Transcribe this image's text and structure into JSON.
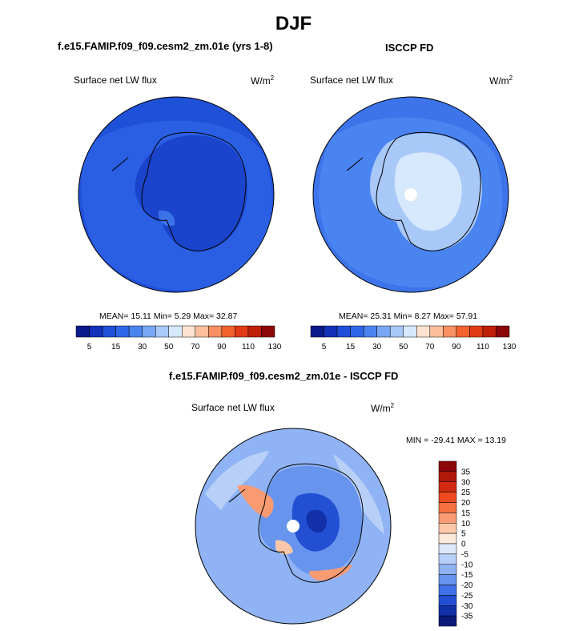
{
  "page": {
    "title": "DJF"
  },
  "panels": [
    {
      "case_title": "f.e15.FAMIP.f09_f09.cesm2_zm.01e (yrs 1-8)",
      "field_label": "Surface net LW flux",
      "unit_base": "W/m",
      "unit_exp": "2",
      "stats": {
        "mean_label": "MEAN=",
        "mean": "15.11",
        "min_label": "Min=",
        "min": "5.29",
        "max_label": "Max=",
        "max": "32.87"
      }
    },
    {
      "case_title": "ISCCP FD",
      "field_label": "Surface net LW flux",
      "unit_base": "W/m",
      "unit_exp": "2",
      "stats": {
        "mean_label": "MEAN=",
        "mean": "25.31",
        "min_label": "Min=",
        "min": "8.27",
        "max_label": "Max=",
        "max": "57.91"
      }
    }
  ],
  "diff_panel": {
    "case_title": "f.e15.FAMIP.f09_f09.cesm2_zm.01e - ISCCP FD",
    "field_label": "Surface net LW flux",
    "unit_base": "W/m",
    "unit_exp": "2",
    "minmax": {
      "min_label": "MIN =",
      "min": "-29.41",
      "max_label": "MAX =",
      "max": "13.19"
    }
  },
  "chart_data": [
    {
      "type": "heatmap",
      "projection": "south-polar-stereographic",
      "field": "Surface net LW flux",
      "units": "W/m2",
      "summary": {
        "mean": 15.11,
        "min": 5.29,
        "max": 32.87
      },
      "colorbar": {
        "orientation": "horizontal",
        "tick_labels": [
          "5",
          "15",
          "30",
          "50",
          "70",
          "90",
          "110",
          "130"
        ],
        "colors": [
          "#0a1a8a",
          "#1230b8",
          "#1f4fd6",
          "#2e66e8",
          "#4a84f0",
          "#78a8f5",
          "#a8c8f8",
          "#d6e8fb",
          "#fde3cf",
          "#fbbf9b",
          "#f89062",
          "#f2622e",
          "#e03b14",
          "#bf200a",
          "#8c0808"
        ]
      }
    },
    {
      "type": "heatmap",
      "projection": "south-polar-stereographic",
      "field": "Surface net LW flux",
      "units": "W/m2",
      "summary": {
        "mean": 25.31,
        "min": 8.27,
        "max": 57.91
      },
      "colorbar": {
        "orientation": "horizontal",
        "tick_labels": [
          "5",
          "15",
          "30",
          "50",
          "70",
          "90",
          "110",
          "130"
        ],
        "colors": [
          "#0a1a8a",
          "#1230b8",
          "#1f4fd6",
          "#2e66e8",
          "#4a84f0",
          "#78a8f5",
          "#a8c8f8",
          "#d6e8fb",
          "#fde3cf",
          "#fbbf9b",
          "#f89062",
          "#f2622e",
          "#e03b14",
          "#bf200a",
          "#8c0808"
        ]
      }
    },
    {
      "type": "heatmap",
      "projection": "south-polar-stereographic",
      "field": "Surface net LW flux",
      "units": "W/m2",
      "summary": {
        "min": -29.41,
        "max": 13.19
      },
      "colorbar": {
        "orientation": "vertical",
        "tick_labels": [
          "35",
          "30",
          "25",
          "20",
          "15",
          "10",
          "5",
          "0",
          "-5",
          "-10",
          "-15",
          "-20",
          "-25",
          "-30",
          "-35"
        ],
        "colors": [
          "#8c0808",
          "#b0180a",
          "#d22a10",
          "#ee4a20",
          "#f5703f",
          "#f89a72",
          "#fbc7a8",
          "#fde8dc",
          "#dce9fb",
          "#b8d0f8",
          "#8fb3f4",
          "#6795ee",
          "#3e72e6",
          "#2350d2",
          "#1230a8",
          "#0a1a7a"
        ]
      }
    }
  ]
}
